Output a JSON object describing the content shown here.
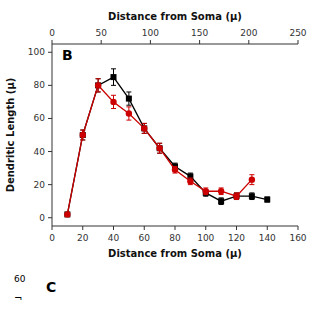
{
  "chart_data": {
    "type": "line",
    "x_label": "Distance from Soma (μ)",
    "y_label": "Dendritic Length (μ)",
    "xlim": [
      0,
      160
    ],
    "ylim": [
      -5,
      105
    ],
    "xticks": [
      0,
      20,
      40,
      60,
      80,
      100,
      120,
      140,
      160
    ],
    "yticks": [
      0,
      20,
      40,
      60,
      80,
      100
    ],
    "x2lim": [
      0,
      250
    ],
    "x2ticks": [
      0,
      50,
      100,
      150,
      200,
      250
    ],
    "grid": false,
    "series": [
      {
        "color": "#000000",
        "marker": "square",
        "x": [
          10,
          20,
          30,
          40,
          50,
          60,
          70,
          80,
          90,
          100,
          110,
          120,
          130,
          140
        ],
        "values": [
          2,
          50,
          80,
          85,
          72,
          54,
          42,
          31,
          25,
          15,
          10,
          13,
          13,
          11
        ],
        "errors": [
          0.5,
          3,
          4,
          5,
          4,
          3,
          3,
          2,
          2,
          2,
          2,
          2,
          2,
          1.5
        ]
      },
      {
        "color": "#cc0000",
        "marker": "circle",
        "x": [
          10,
          20,
          30,
          40,
          50,
          60,
          70,
          80,
          90,
          100,
          110,
          120,
          130
        ],
        "values": [
          2,
          50,
          80,
          70,
          63,
          54,
          42,
          29,
          22,
          16,
          16,
          13,
          23
        ],
        "errors": [
          0.5,
          3,
          4,
          4,
          4,
          3,
          3,
          2,
          2,
          2,
          2,
          2,
          3
        ]
      }
    ],
    "annotations": [
      {
        "text": "B"
      },
      {
        "text": "60"
      },
      {
        "text": "¬"
      },
      {
        "text": "C"
      }
    ]
  }
}
